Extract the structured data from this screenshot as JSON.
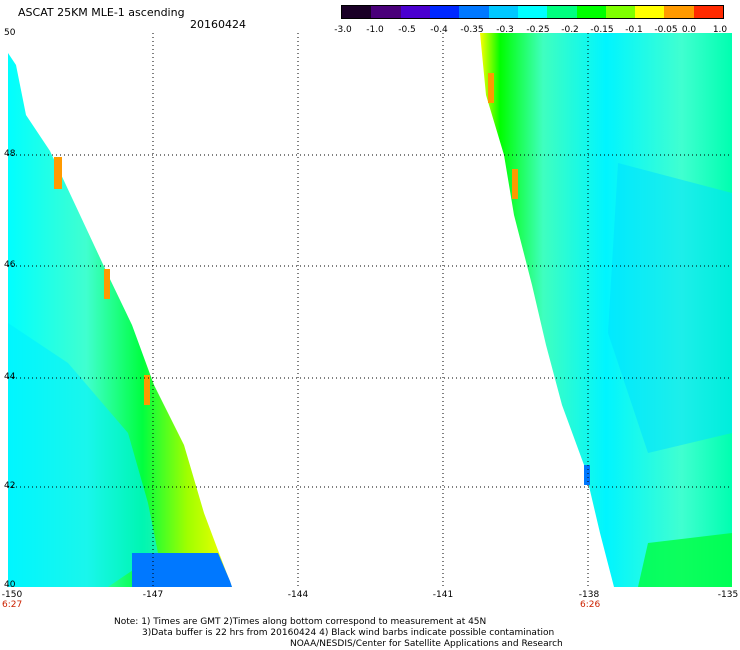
{
  "header": {
    "title": "ASCAT 25KM MLE-1 ascending",
    "date": "20160424"
  },
  "colorbar": {
    "labels": [
      "-3.0",
      "-1.0",
      "-0.5",
      "-0.4",
      "-0.35",
      "-0.3",
      "-0.25",
      "-0.2",
      "-0.15",
      "-0.1",
      "-0.05",
      "0.0",
      "1.0"
    ],
    "colors": [
      "#1a0026",
      "#4a007a",
      "#4b00d0",
      "#0028ff",
      "#0078ff",
      "#00c8ff",
      "#00ffff",
      "#00ff7f",
      "#00ff00",
      "#7fff00",
      "#ffff00",
      "#ff9a00",
      "#ff2a00"
    ]
  },
  "map": {
    "lat_labels": [
      "50",
      "48",
      "46",
      "44",
      "42",
      "40"
    ],
    "lon_labels": [
      "-150",
      "-147",
      "-144",
      "-141",
      "-138",
      "-135"
    ],
    "time_labels": [
      {
        "lon": "-150",
        "text": "6:27"
      },
      {
        "lon": "-138",
        "text": "6:26"
      }
    ],
    "lon_range": [
      -150,
      -135
    ],
    "lat_range": [
      40,
      50
    ],
    "gridlines": true
  },
  "notes": [
    "Note: 1) Times are GMT 2)Times along bottom correspond to measurement at 45N",
    "3)Data buffer is 22 hrs from 20160424 4) Black wind barbs indicate possible contamination",
    "NOAA/NESDIS/Center for Satellite Applications and Research"
  ]
}
